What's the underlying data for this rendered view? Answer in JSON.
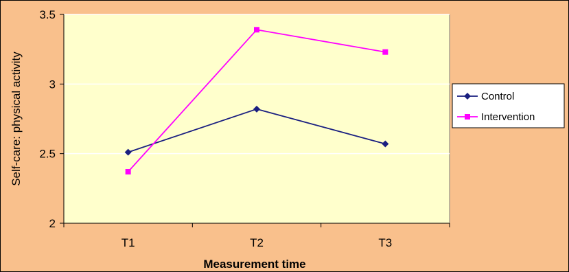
{
  "chart_data": {
    "type": "line",
    "title": "",
    "xlabel": "Measurement time",
    "ylabel": "Self-care: physical activity",
    "categories": [
      "T1",
      "T2",
      "T3"
    ],
    "ylim": [
      2,
      3.5
    ],
    "yticks": [
      2,
      2.5,
      3,
      3.5
    ],
    "ytick_labels": [
      "2",
      "2.5",
      "3",
      "3.5"
    ],
    "grid": true,
    "legend_position": "right",
    "series": [
      {
        "name": "Control",
        "values": [
          2.51,
          2.82,
          2.57
        ],
        "color": "#1a1f80",
        "marker": "diamond"
      },
      {
        "name": "Intervention",
        "values": [
          2.37,
          3.39,
          3.23
        ],
        "color": "#ff00ff",
        "marker": "square"
      }
    ],
    "plot_background": "#ffffcc",
    "chart_background": "#f9c08c"
  }
}
